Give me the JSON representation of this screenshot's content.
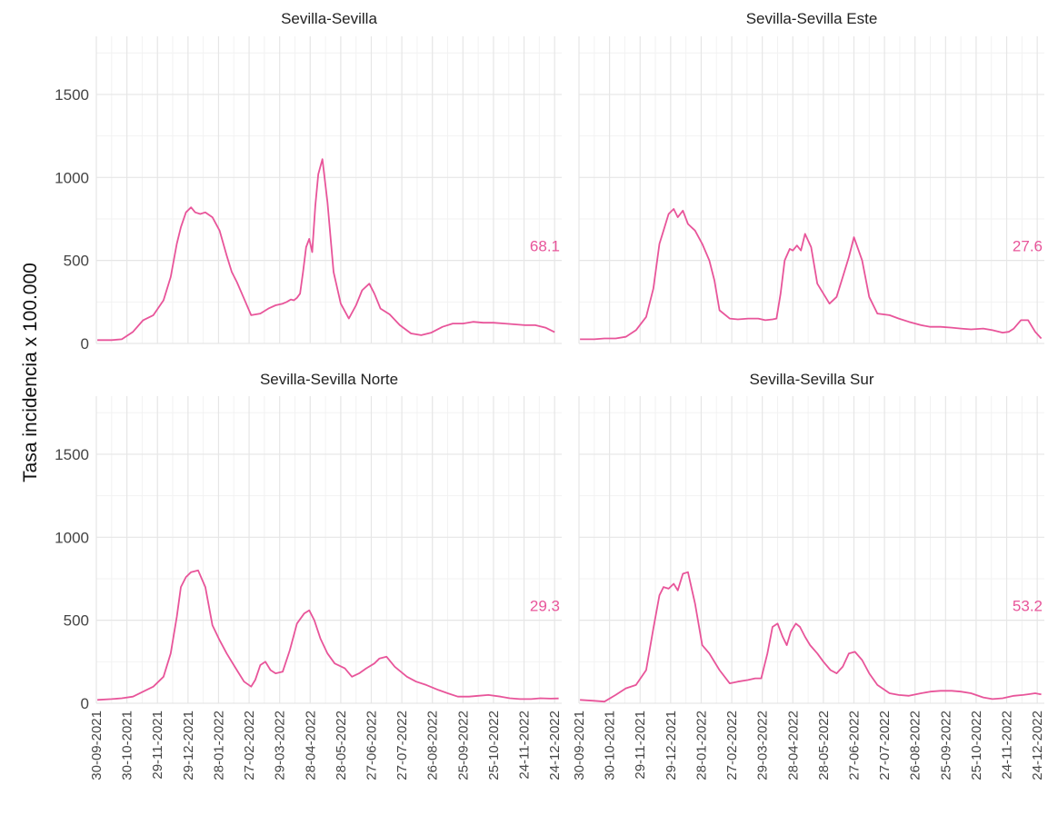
{
  "chart_data": {
    "type": "line",
    "ylabel": "Tasa incidencia x 100.000",
    "ylim": [
      0,
      1850
    ],
    "yticks": [
      0,
      500,
      1000,
      1500
    ],
    "x_start": "30-09-2021",
    "x_end": "31-12-2022",
    "xticks": [
      "30-09-2021",
      "30-10-2021",
      "29-11-2021",
      "29-12-2021",
      "28-01-2022",
      "27-02-2022",
      "29-03-2022",
      "28-04-2022",
      "28-05-2022",
      "27-06-2022",
      "27-07-2022",
      "26-08-2022",
      "25-09-2022",
      "25-10-2022",
      "24-11-2022",
      "24-12-2022"
    ],
    "line_color": "#e8559a",
    "grid": true,
    "panels": [
      {
        "title": "Sevilla-Sevilla",
        "last_value_label": "68.1",
        "series": {
          "x": [
            "01-10-2021",
            "15-10-2021",
            "25-10-2021",
            "05-11-2021",
            "15-11-2021",
            "25-11-2021",
            "05-12-2021",
            "12-12-2021",
            "18-12-2021",
            "22-12-2021",
            "27-12-2021",
            "01-01-2022",
            "05-01-2022",
            "10-01-2022",
            "15-01-2022",
            "22-01-2022",
            "29-01-2022",
            "05-02-2022",
            "10-02-2022",
            "15-02-2022",
            "22-02-2022",
            "01-03-2022",
            "10-03-2022",
            "18-03-2022",
            "25-03-2022",
            "01-04-2022",
            "05-04-2022",
            "09-04-2022",
            "12-04-2022",
            "15-04-2022",
            "18-04-2022",
            "21-04-2022",
            "24-04-2022",
            "27-04-2022",
            "30-04-2022",
            "03-05-2022",
            "06-05-2022",
            "10-05-2022",
            "15-05-2022",
            "21-05-2022",
            "28-05-2022",
            "05-06-2022",
            "12-06-2022",
            "18-06-2022",
            "25-06-2022",
            "30-06-2022",
            "06-07-2022",
            "15-07-2022",
            "25-07-2022",
            "05-08-2022",
            "15-08-2022",
            "25-08-2022",
            "05-09-2022",
            "15-09-2022",
            "25-09-2022",
            "05-10-2022",
            "15-10-2022",
            "25-10-2022",
            "05-11-2022",
            "15-11-2022",
            "25-11-2022",
            "05-12-2022",
            "15-12-2022",
            "24-12-2022"
          ],
          "y": [
            20,
            20,
            25,
            70,
            140,
            170,
            260,
            400,
            600,
            700,
            790,
            820,
            790,
            780,
            790,
            760,
            680,
            530,
            430,
            370,
            270,
            170,
            180,
            210,
            230,
            240,
            250,
            265,
            260,
            275,
            300,
            430,
            580,
            630,
            550,
            830,
            1020,
            1110,
            850,
            430,
            240,
            150,
            230,
            320,
            360,
            300,
            210,
            175,
            110,
            60,
            50,
            65,
            100,
            120,
            120,
            130,
            125,
            125,
            120,
            115,
            110,
            110,
            95,
            68
          ]
        }
      },
      {
        "title": "Sevilla-Sevilla Este",
        "last_value_label": "27.6",
        "series": {
          "x": [
            "01-10-2021",
            "15-10-2021",
            "25-10-2021",
            "05-11-2021",
            "15-11-2021",
            "25-11-2021",
            "05-12-2021",
            "12-12-2021",
            "18-12-2021",
            "22-12-2021",
            "27-12-2021",
            "01-01-2022",
            "05-01-2022",
            "10-01-2022",
            "15-01-2022",
            "22-01-2022",
            "29-01-2022",
            "05-02-2022",
            "10-02-2022",
            "15-02-2022",
            "25-02-2022",
            "05-03-2022",
            "15-03-2022",
            "25-03-2022",
            "01-04-2022",
            "08-04-2022",
            "12-04-2022",
            "16-04-2022",
            "20-04-2022",
            "25-04-2022",
            "28-04-2022",
            "02-05-2022",
            "06-05-2022",
            "10-05-2022",
            "16-05-2022",
            "22-05-2022",
            "28-05-2022",
            "03-06-2022",
            "10-06-2022",
            "16-06-2022",
            "22-06-2022",
            "27-06-2022",
            "05-07-2022",
            "12-07-2022",
            "20-07-2022",
            "01-08-2022",
            "10-08-2022",
            "20-08-2022",
            "01-09-2022",
            "10-09-2022",
            "20-09-2022",
            "01-10-2022",
            "10-10-2022",
            "20-10-2022",
            "01-11-2022",
            "10-11-2022",
            "20-11-2022",
            "26-11-2022",
            "01-12-2022",
            "08-12-2022",
            "15-12-2022",
            "22-12-2022",
            "28-12-2022"
          ],
          "y": [
            25,
            25,
            30,
            30,
            40,
            80,
            160,
            330,
            600,
            680,
            780,
            810,
            760,
            800,
            720,
            680,
            600,
            500,
            380,
            200,
            150,
            145,
            150,
            150,
            140,
            145,
            150,
            300,
            500,
            570,
            560,
            590,
            560,
            660,
            580,
            360,
            300,
            240,
            280,
            400,
            520,
            640,
            500,
            280,
            180,
            170,
            150,
            130,
            110,
            100,
            100,
            95,
            90,
            85,
            90,
            80,
            65,
            70,
            90,
            140,
            140,
            70,
            30
          ]
        }
      },
      {
        "title": "Sevilla-Sevilla Norte",
        "last_value_label": "29.3",
        "series": {
          "x": [
            "01-10-2021",
            "15-10-2021",
            "25-10-2021",
            "05-11-2021",
            "15-11-2021",
            "25-11-2021",
            "05-12-2021",
            "12-12-2021",
            "18-12-2021",
            "22-12-2021",
            "27-12-2021",
            "01-01-2022",
            "08-01-2022",
            "15-01-2022",
            "22-01-2022",
            "29-01-2022",
            "05-02-2022",
            "15-02-2022",
            "22-02-2022",
            "01-03-2022",
            "05-03-2022",
            "10-03-2022",
            "15-03-2022",
            "20-03-2022",
            "25-03-2022",
            "01-04-2022",
            "08-04-2022",
            "15-04-2022",
            "22-04-2022",
            "27-04-2022",
            "02-05-2022",
            "08-05-2022",
            "15-05-2022",
            "22-05-2022",
            "01-06-2022",
            "08-06-2022",
            "15-06-2022",
            "22-06-2022",
            "30-06-2022",
            "05-07-2022",
            "12-07-2022",
            "20-07-2022",
            "01-08-2022",
            "10-08-2022",
            "20-08-2022",
            "01-09-2022",
            "10-09-2022",
            "20-09-2022",
            "01-10-2022",
            "10-10-2022",
            "20-10-2022",
            "01-11-2022",
            "10-11-2022",
            "20-11-2022",
            "01-12-2022",
            "10-12-2022",
            "20-12-2022",
            "28-12-2022"
          ],
          "y": [
            20,
            25,
            30,
            40,
            70,
            100,
            160,
            300,
            520,
            700,
            760,
            790,
            800,
            700,
            470,
            380,
            300,
            200,
            130,
            100,
            140,
            230,
            250,
            200,
            180,
            190,
            320,
            480,
            540,
            560,
            500,
            390,
            300,
            240,
            210,
            160,
            180,
            210,
            240,
            270,
            280,
            220,
            160,
            130,
            110,
            80,
            60,
            40,
            40,
            45,
            50,
            40,
            30,
            25,
            25,
            30,
            28,
            29
          ]
        }
      },
      {
        "title": "Sevilla-Sevilla Sur",
        "last_value_label": "53.2",
        "series": {
          "x": [
            "01-10-2021",
            "15-10-2021",
            "25-10-2021",
            "05-11-2021",
            "15-11-2021",
            "25-11-2021",
            "05-12-2021",
            "12-12-2021",
            "18-12-2021",
            "22-12-2021",
            "27-12-2021",
            "01-01-2022",
            "05-01-2022",
            "10-01-2022",
            "15-01-2022",
            "22-01-2022",
            "29-01-2022",
            "05-02-2022",
            "15-02-2022",
            "25-02-2022",
            "05-03-2022",
            "15-03-2022",
            "22-03-2022",
            "28-03-2022",
            "03-04-2022",
            "08-04-2022",
            "13-04-2022",
            "18-04-2022",
            "22-04-2022",
            "26-04-2022",
            "01-05-2022",
            "05-05-2022",
            "10-05-2022",
            "15-05-2022",
            "22-05-2022",
            "28-05-2022",
            "04-06-2022",
            "10-06-2022",
            "16-06-2022",
            "22-06-2022",
            "28-06-2022",
            "05-07-2022",
            "12-07-2022",
            "20-07-2022",
            "01-08-2022",
            "10-08-2022",
            "20-08-2022",
            "01-09-2022",
            "10-09-2022",
            "20-09-2022",
            "01-10-2022",
            "10-10-2022",
            "20-10-2022",
            "01-11-2022",
            "10-11-2022",
            "20-11-2022",
            "01-12-2022",
            "10-12-2022",
            "16-12-2022",
            "22-12-2022",
            "28-12-2022"
          ],
          "y": [
            20,
            15,
            10,
            50,
            90,
            110,
            200,
            450,
            650,
            700,
            690,
            720,
            680,
            780,
            790,
            600,
            350,
            300,
            200,
            120,
            130,
            140,
            150,
            150,
            300,
            460,
            480,
            400,
            350,
            430,
            480,
            460,
            400,
            350,
            300,
            250,
            200,
            180,
            220,
            300,
            310,
            260,
            180,
            110,
            60,
            50,
            45,
            60,
            70,
            75,
            75,
            70,
            60,
            35,
            25,
            30,
            45,
            50,
            55,
            60,
            53
          ]
        }
      }
    ]
  }
}
